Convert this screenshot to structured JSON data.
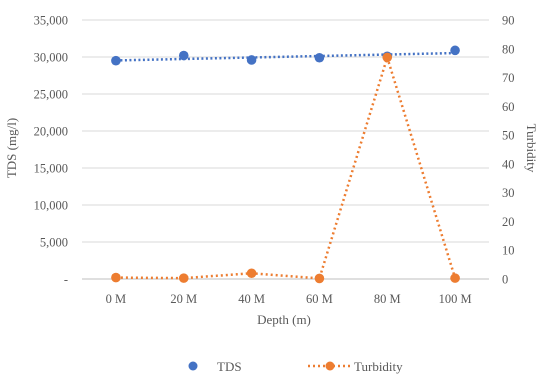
{
  "chart_data": {
    "type": "line",
    "title": "",
    "categories": [
      "0 M",
      "20 M",
      "40 M",
      "60 M",
      "80 M",
      "100 M"
    ],
    "xlabel": "Depth (m)",
    "ylabel": "TDS (mg/l)",
    "y2label": "Turbidity",
    "ylim": [
      0,
      35000
    ],
    "yticks": [
      0,
      5000,
      10000,
      15000,
      20000,
      25000,
      30000,
      35000
    ],
    "ytick_labels": [
      "-",
      "5,000",
      "10,000",
      "15,000",
      "20,000",
      "25,000",
      "30,000",
      "35,000"
    ],
    "y2lim": [
      0,
      90
    ],
    "y2ticks": [
      0,
      10,
      20,
      30,
      40,
      50,
      60,
      70,
      80,
      90
    ],
    "y2tick_labels": [
      "0",
      "10",
      "20",
      "30",
      "40",
      "50",
      "60",
      "70",
      "80",
      "90"
    ],
    "grid": true,
    "legend_position": "bottom",
    "series": [
      {
        "name": "TDS",
        "axis": "left",
        "style": "markers-with-trendline",
        "color": "#4472C4",
        "values": [
          29500,
          30200,
          29600,
          29900,
          30100,
          30900
        ]
      },
      {
        "name": "Turbidity",
        "axis": "right",
        "style": "dotted-line-with-markers",
        "color": "#ED7D31",
        "values": [
          0.5,
          0.3,
          2.0,
          0.2,
          77,
          0.3
        ]
      }
    ]
  }
}
